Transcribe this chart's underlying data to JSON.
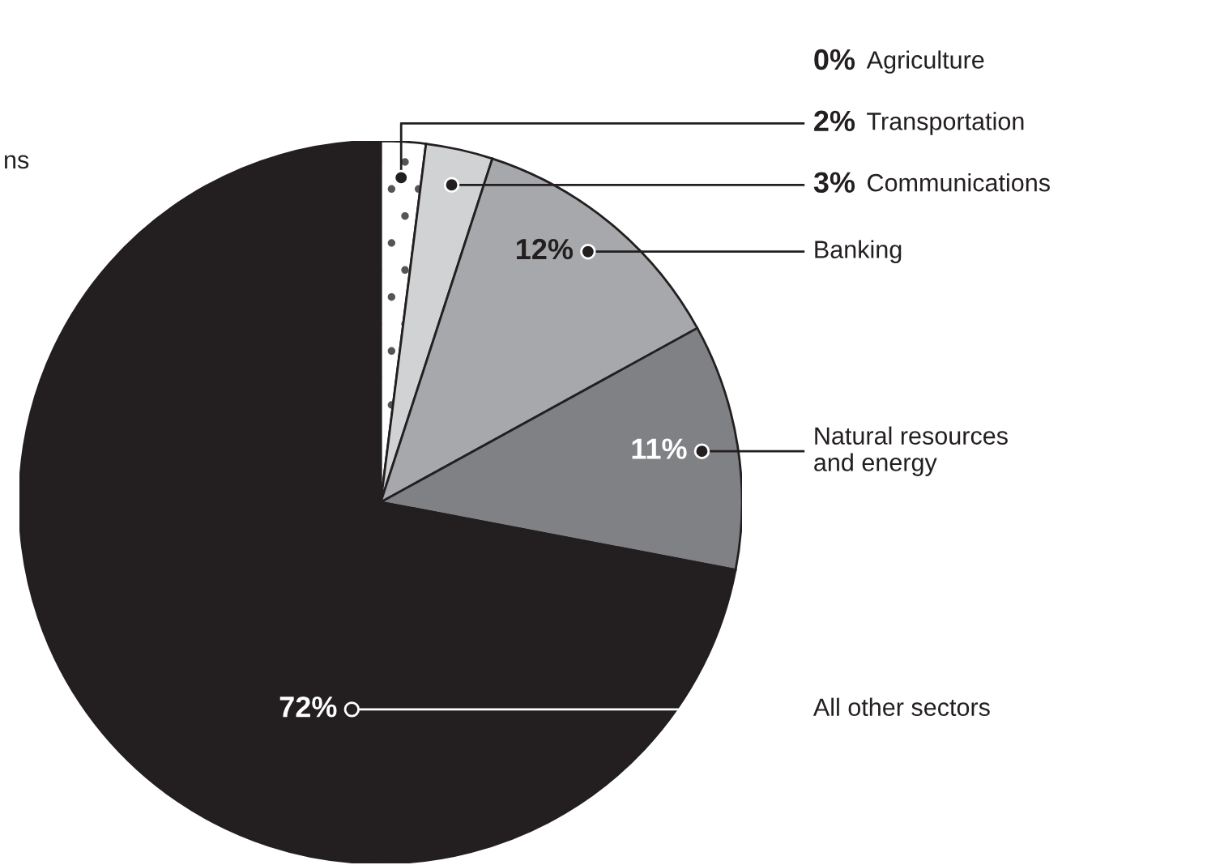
{
  "chart_data": {
    "type": "pie",
    "categories": [
      "Agriculture",
      "Transportation",
      "Communications",
      "Banking",
      "Natural resources\nand energy",
      "All other sectors"
    ],
    "values": [
      0,
      2,
      3,
      12,
      11,
      72
    ],
    "colors": [
      "#ffffff",
      "#ffffff",
      "#d1d2d4",
      "#a7a8ab",
      "#808184",
      "#231f20"
    ],
    "value_labels": [
      "0%",
      "2%",
      "3%",
      "12%",
      "11%",
      "72%"
    ],
    "annotations": [
      "ns"
    ]
  }
}
